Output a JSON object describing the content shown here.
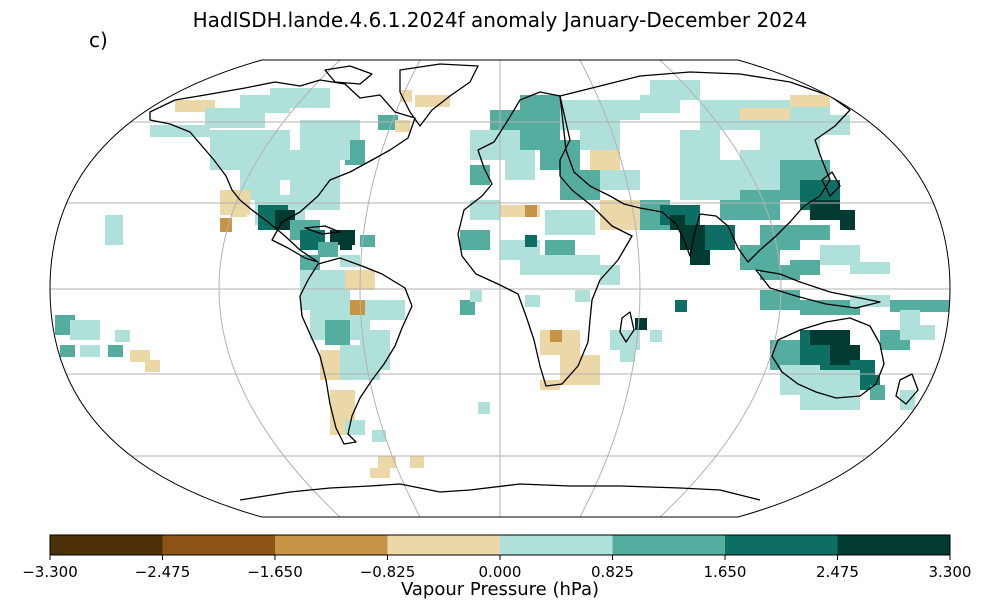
{
  "figure": {
    "title": "HadISDH.lande.4.6.1.2024f anomaly January-December 2024",
    "panel_label": "c)"
  },
  "map": {
    "projection": "Robinson",
    "graticule": "30° spacing",
    "missing_data": "white",
    "coastline_color": "#000000",
    "gridline_color": "#b3b3b3"
  },
  "colorbar": {
    "label": "Vapour Pressure (hPa)",
    "ticks": [
      "−3.300",
      "−2.475",
      "−1.650",
      "−0.825",
      "0.000",
      "0.825",
      "1.650",
      "2.475",
      "3.300"
    ],
    "colors": [
      "#4a2f08",
      "#8c5414",
      "#c69444",
      "#ecd7a6",
      "#b0e0da",
      "#55ad9f",
      "#0d6e63",
      "#013a30"
    ]
  }
}
